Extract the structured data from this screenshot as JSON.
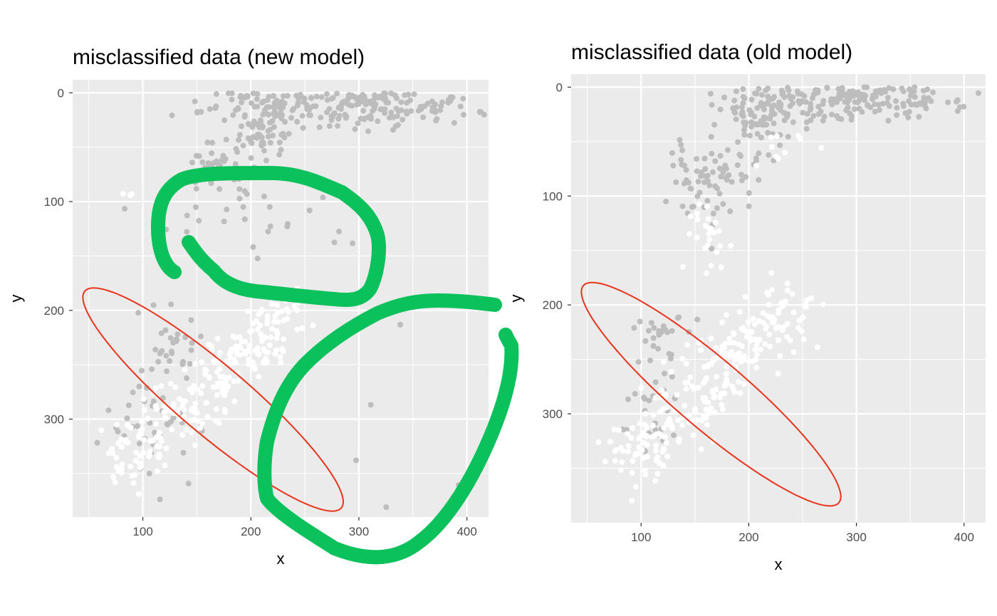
{
  "colors": {
    "panel_background": "#ebebeb",
    "grid_major": "#ffffff",
    "correct_point": "#ffffff",
    "misclassified_point": "#bdbdbd",
    "ellipse": "#e8341c",
    "annotation_marker": "#0ac15c",
    "tick_text": "#4d4d4d"
  },
  "chart_data": [
    {
      "type": "scatter",
      "title": "misclassified data (new model)",
      "xlabel": "x",
      "ylabel": "y",
      "xlim": [
        35,
        420
      ],
      "ylim": [
        390,
        -12
      ],
      "y_reversed": true,
      "grid": true,
      "xticks": [
        100,
        200,
        300,
        400
      ],
      "yticks": [
        0,
        100,
        200,
        300
      ],
      "grey_clusters": [
        {
          "cx": 300,
          "cy": 12,
          "sx": 55,
          "sy": 10,
          "n": 200
        },
        {
          "cx": 210,
          "cy": 25,
          "sx": 15,
          "sy": 20,
          "n": 100
        },
        {
          "cx": 170,
          "cy": 75,
          "sx": 15,
          "sy": 20,
          "n": 50
        },
        {
          "cx": 200,
          "cy": 120,
          "sx": 45,
          "sy": 15,
          "n": 22
        },
        {
          "cx": 130,
          "cy": 230,
          "sx": 15,
          "sy": 15,
          "n": 30
        },
        {
          "cx": 110,
          "cy": 310,
          "sx": 20,
          "sy": 25,
          "n": 40
        },
        {
          "cx": 340,
          "cy": 300,
          "sx": 30,
          "sy": 40,
          "n": 5
        }
      ],
      "white_clusters": [
        {
          "x0": 80,
          "y0": 345,
          "x1": 240,
          "y1": 200,
          "spread": 15,
          "n": 260
        },
        {
          "cx": 90,
          "cy": 92,
          "sx": 8,
          "sy": 3,
          "n": 3
        }
      ],
      "ellipse": {
        "cx": 165,
        "cy": 282,
        "a": 155,
        "b": 32,
        "angle_deg": -40
      },
      "annotation_strokes": [
        "M245,382 C228,372 222,345 222,318 C222,285 232,265 255,252 C280,242 330,243 380,243 C420,243 445,255 480,270 C505,287 522,303 530,330 C535,350 530,385 520,405 C510,420 495,423 470,420 C440,418 400,413 370,410 C340,408 315,400 300,380 C285,368 275,355 265,340",
        "M695,428 C670,425 645,422 615,422 C585,422 560,427 530,440 C495,458 460,480 430,510 C400,540 385,580 375,620 C370,650 370,680 375,700 C390,720 430,745 470,770 C520,790 560,785 590,760 C630,730 665,670 690,610 C715,550 720,510 718,485 C715,480 712,475 710,470"
      ]
    },
    {
      "type": "scatter",
      "title": "misclassified data (old model)",
      "xlabel": "x",
      "ylabel": "y",
      "xlim": [
        35,
        420
      ],
      "ylim": [
        400,
        -12
      ],
      "y_reversed": true,
      "grid": true,
      "xticks": [
        100,
        200,
        300,
        400
      ],
      "yticks": [
        0,
        100,
        200,
        300
      ],
      "grey_clusters": [
        {
          "cx": 300,
          "cy": 12,
          "sx": 55,
          "sy": 10,
          "n": 180
        },
        {
          "cx": 210,
          "cy": 28,
          "sx": 15,
          "sy": 18,
          "n": 90
        },
        {
          "cx": 165,
          "cy": 85,
          "sx": 18,
          "sy": 20,
          "n": 70
        },
        {
          "cx": 115,
          "cy": 225,
          "sx": 12,
          "sy": 12,
          "n": 25
        },
        {
          "cx": 110,
          "cy": 305,
          "sx": 15,
          "sy": 25,
          "n": 30
        }
      ],
      "white_clusters": [
        {
          "x0": 80,
          "y0": 350,
          "x1": 240,
          "y1": 200,
          "spread": 15,
          "n": 280
        },
        {
          "cx": 160,
          "cy": 140,
          "sx": 12,
          "sy": 20,
          "n": 25
        },
        {
          "cx": 230,
          "cy": 60,
          "sx": 15,
          "sy": 15,
          "n": 10
        }
      ],
      "ellipse": {
        "cx": 165,
        "cy": 282,
        "a": 155,
        "b": 32,
        "angle_deg": -40
      }
    }
  ]
}
